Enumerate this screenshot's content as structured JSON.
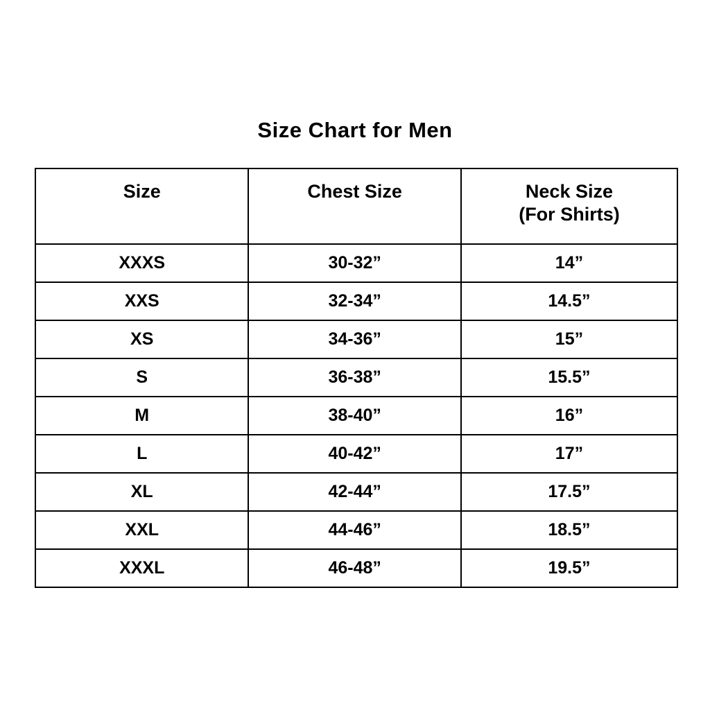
{
  "page": {
    "title": "Size Chart for Men"
  },
  "colors": {
    "background": "#ffffff",
    "text": "#000000",
    "border": "#000000"
  },
  "chart_data": {
    "type": "table",
    "title": "Size Chart for Men",
    "columns": [
      "Size",
      "Chest Size",
      "Neck Size\n(For Shirts)"
    ],
    "rows": [
      [
        "XXXS",
        "30-32”",
        "14”"
      ],
      [
        "XXS",
        "32-34”",
        "14.5”"
      ],
      [
        "XS",
        "34-36”",
        "15”"
      ],
      [
        "S",
        "36-38”",
        "15.5”"
      ],
      [
        "M",
        "38-40”",
        "16”"
      ],
      [
        "L",
        "40-42”",
        "17”"
      ],
      [
        "XL",
        "42-44”",
        "17.5”"
      ],
      [
        "XXL",
        "44-46”",
        "18.5”"
      ],
      [
        "XXXL",
        "46-48”",
        "19.5”"
      ]
    ],
    "layout": {
      "grid": true,
      "header_rows": 1,
      "data_rows": 9,
      "text_align": "center"
    }
  }
}
